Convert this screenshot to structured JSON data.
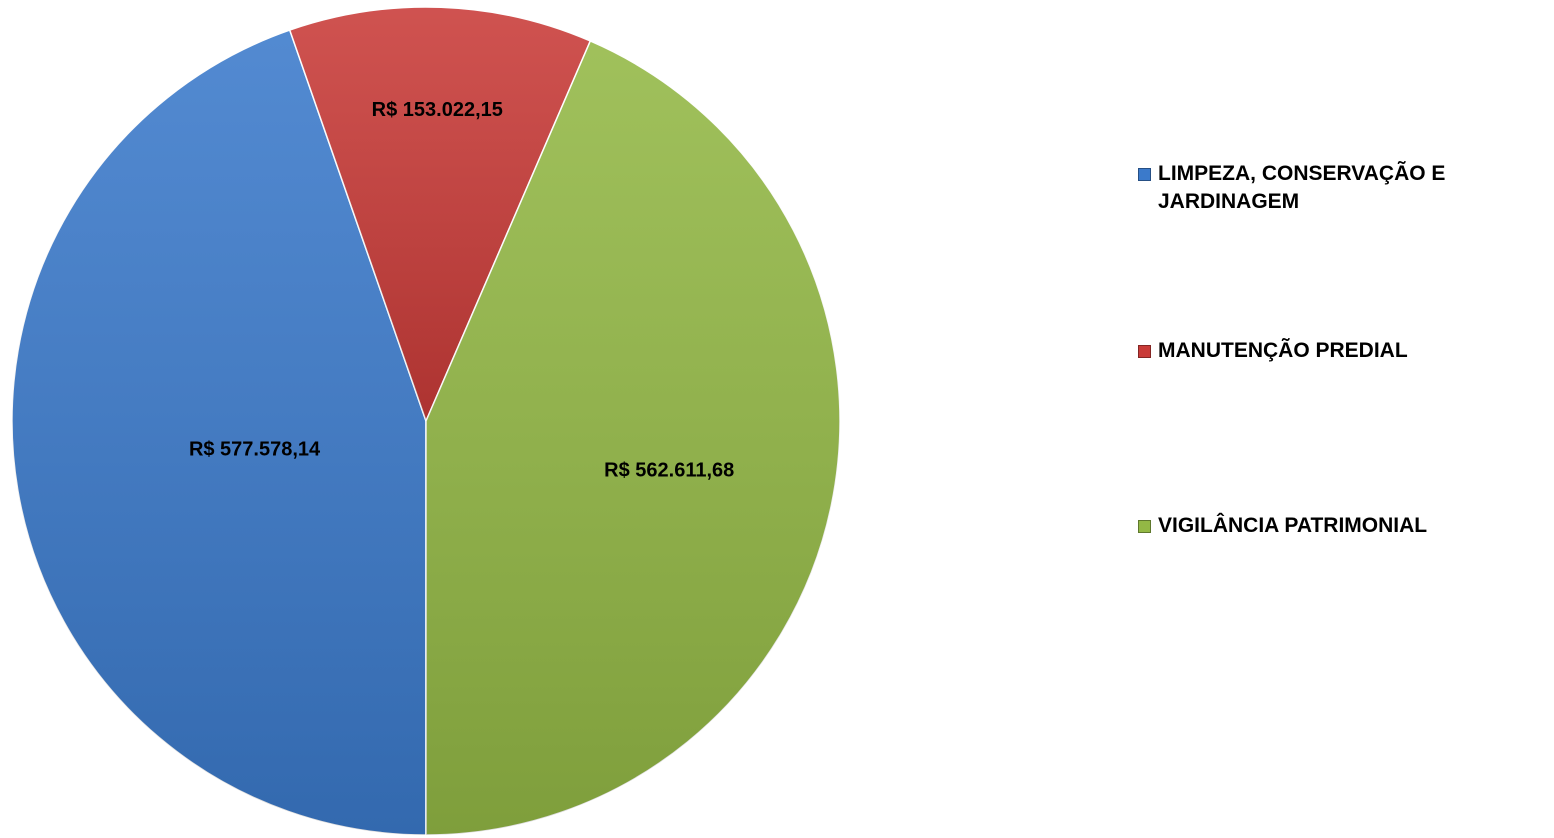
{
  "chart_data": {
    "type": "pie",
    "categories": [
      "LIMPEZA, CONSERVAÇÃO E JARDINAGEM",
      "MANUTENÇÃO PREDIAL",
      "VIGILÂNCIA PATRIMONIAL"
    ],
    "values": [
      577578.14,
      153022.15,
      562611.68
    ],
    "value_labels": [
      "R$ 577.578,14",
      "R$ 153.022,15",
      "R$ 562.611,68"
    ],
    "colors": [
      "#3b7acb",
      "#c93b38",
      "#93b845"
    ],
    "legend": "right"
  }
}
